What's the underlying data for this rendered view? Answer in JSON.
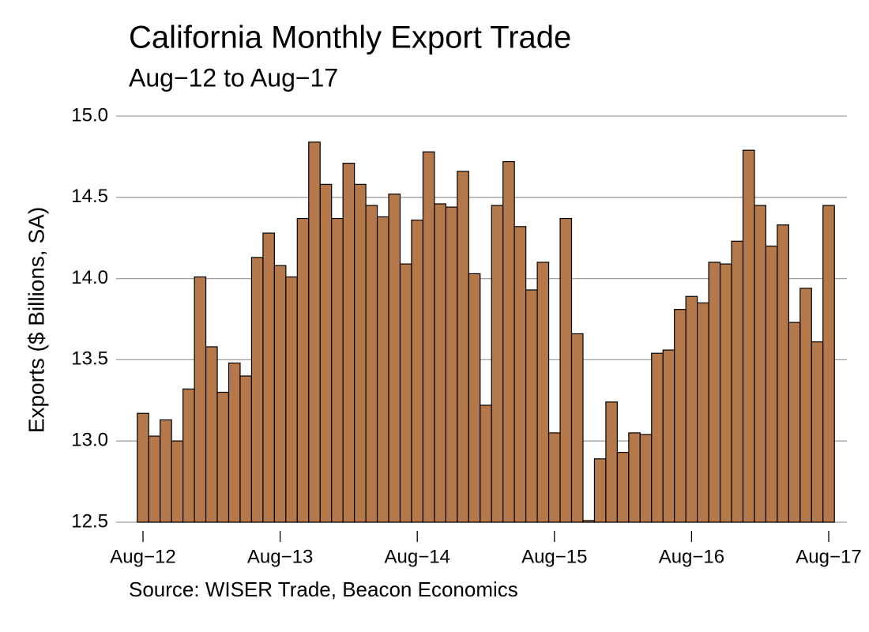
{
  "chart_data": {
    "type": "bar",
    "title": "California Monthly Export Trade",
    "subtitle": "Aug−12 to Aug−17",
    "ylabel": "Exports ($ Billions, SA)",
    "source": "Source: WISER Trade, Beacon Economics",
    "categories": [
      "Aug−12",
      null,
      null,
      null,
      null,
      null,
      null,
      null,
      null,
      null,
      null,
      null,
      "Aug−13",
      null,
      null,
      null,
      null,
      null,
      null,
      null,
      null,
      null,
      null,
      null,
      "Aug−14",
      null,
      null,
      null,
      null,
      null,
      null,
      null,
      null,
      null,
      null,
      null,
      "Aug−15",
      null,
      null,
      null,
      null,
      null,
      null,
      null,
      null,
      null,
      null,
      null,
      "Aug−16",
      null,
      null,
      null,
      null,
      null,
      null,
      null,
      null,
      null,
      null,
      null,
      "Aug−17"
    ],
    "values": [
      13.17,
      13.03,
      13.13,
      13.0,
      13.32,
      14.01,
      13.58,
      13.3,
      13.48,
      13.4,
      14.13,
      14.28,
      14.08,
      14.01,
      14.37,
      14.84,
      14.58,
      14.37,
      14.71,
      14.58,
      14.45,
      14.38,
      14.52,
      14.09,
      14.36,
      14.78,
      14.46,
      14.44,
      14.66,
      14.03,
      13.22,
      14.45,
      14.72,
      14.32,
      13.93,
      14.1,
      13.05,
      14.37,
      13.66,
      12.51,
      12.89,
      13.24,
      12.93,
      13.05,
      13.04,
      13.54,
      13.56,
      13.81,
      13.89,
      13.85,
      14.1,
      14.09,
      14.23,
      14.79,
      14.45,
      14.2,
      14.33,
      13.73,
      13.94,
      13.61,
      14.45
    ],
    "color": "#b5784a",
    "ylim": [
      12.5,
      15.0
    ],
    "yticks": [
      {
        "value": 12.5,
        "label": "12.5"
      },
      {
        "value": 13,
        "label": "13.0"
      },
      13.5,
      {
        "value": 14,
        "label": "14.0"
      },
      14.5,
      {
        "value": 15,
        "label": "15.0"
      }
    ],
    "grid": true
  }
}
